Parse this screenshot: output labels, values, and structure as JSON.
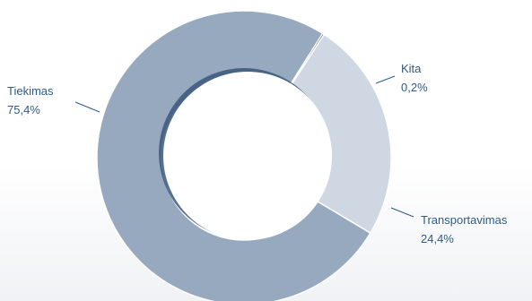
{
  "chart_data": {
    "type": "pie",
    "donut": true,
    "series": [
      {
        "name": "Tiekimas",
        "value": 75.4,
        "label": "75,4%",
        "color": "#97a9bf"
      },
      {
        "name": "Transportavimas",
        "value": 24.4,
        "label": "24,4%",
        "color": "#cfd7e2"
      },
      {
        "name": "Kita",
        "value": 0.2,
        "label": "0,2%",
        "color": "#0c2a4e"
      }
    ]
  }
}
